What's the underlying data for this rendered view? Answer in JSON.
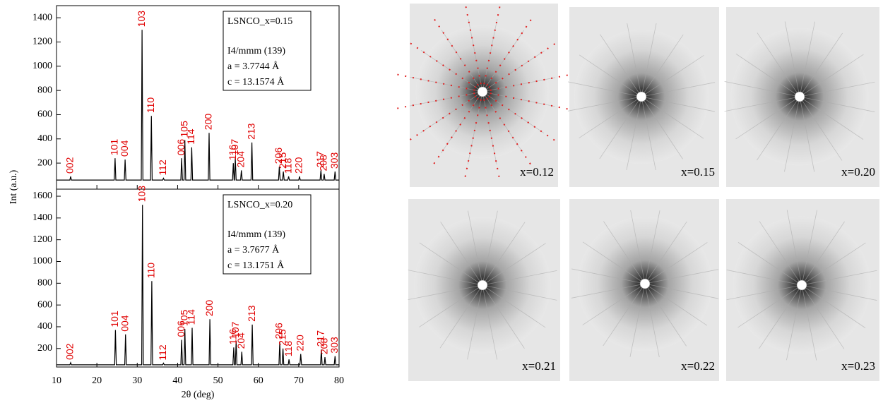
{
  "chart_data": [
    {
      "type": "line",
      "ylabel": "Int (a.u.)",
      "color": "#000000",
      "x": [
        10,
        13.3,
        13.5,
        13.7,
        24.3,
        24.5,
        24.7,
        26.8,
        27.0,
        27.2,
        31.0,
        31.2,
        31.4,
        33.3,
        33.5,
        33.7,
        36.3,
        36.5,
        36.7,
        40.8,
        41.0,
        41.2,
        41.6,
        41.8,
        42.0,
        43.3,
        43.5,
        43.7,
        47.6,
        47.8,
        48.0,
        53.6,
        53.8,
        54.0,
        54.1,
        54.3,
        54.5,
        55.6,
        55.8,
        56.0,
        58.2,
        58.4,
        58.6,
        65.0,
        65.2,
        65.4,
        66.0,
        66.2,
        66.4,
        67.3,
        67.5,
        67.7,
        70.0,
        70.2,
        70.4,
        75.3,
        75.5,
        75.7,
        76.1,
        76.3,
        76.5,
        78.8,
        79.0,
        79.2,
        80
      ],
      "values": [
        60,
        60,
        90,
        60,
        60,
        240,
        60,
        60,
        230,
        60,
        60,
        1300,
        60,
        60,
        590,
        60,
        60,
        75,
        60,
        60,
        240,
        60,
        60,
        390,
        60,
        60,
        330,
        60,
        60,
        450,
        60,
        60,
        200,
        60,
        60,
        240,
        60,
        60,
        140,
        60,
        60,
        370,
        60,
        60,
        170,
        60,
        60,
        130,
        60,
        60,
        90,
        60,
        60,
        90,
        60,
        60,
        140,
        60,
        60,
        110,
        60,
        60,
        130,
        60,
        60
      ],
      "xlim": [
        10,
        80
      ],
      "xticks": [
        10,
        20,
        30,
        40,
        50,
        60,
        70,
        80
      ],
      "ylim": [
        -15,
        1500
      ],
      "yticks": [
        200,
        400,
        600,
        800,
        1000,
        1200,
        1400
      ],
      "annotations": [
        {
          "text": "002",
          "x": 13.5,
          "y": 90
        },
        {
          "text": "101",
          "x": 24.5,
          "y": 240
        },
        {
          "text": "004",
          "x": 27.0,
          "y": 230
        },
        {
          "text": "103",
          "x": 31.2,
          "y": 1300
        },
        {
          "text": "110",
          "x": 33.5,
          "y": 590
        },
        {
          "text": "112",
          "x": 36.5,
          "y": 75
        },
        {
          "text": "006",
          "x": 41.0,
          "y": 240
        },
        {
          "text": "105",
          "x": 41.8,
          "y": 390
        },
        {
          "text": "114",
          "x": 43.5,
          "y": 330
        },
        {
          "text": "200",
          "x": 47.8,
          "y": 450
        },
        {
          "text": "116",
          "x": 53.8,
          "y": 200
        },
        {
          "text": "107",
          "x": 54.3,
          "y": 240
        },
        {
          "text": "204",
          "x": 55.8,
          "y": 140
        },
        {
          "text": "213",
          "x": 58.4,
          "y": 370
        },
        {
          "text": "206",
          "x": 65.2,
          "y": 170
        },
        {
          "text": "215",
          "x": 66.2,
          "y": 130
        },
        {
          "text": "118",
          "x": 67.5,
          "y": 90
        },
        {
          "text": "220",
          "x": 70.2,
          "y": 90
        },
        {
          "text": "217",
          "x": 75.5,
          "y": 140
        },
        {
          "text": "208",
          "x": 76.3,
          "y": 110
        },
        {
          "text": "303",
          "x": 79.0,
          "y": 130
        }
      ],
      "info_box": [
        "LSNCO_x=0.15",
        "I4/mmm (139)",
        "a = 3.7744 Å",
        "c = 13.1574 Å"
      ]
    },
    {
      "type": "line",
      "xlabel": "2θ (deg)",
      "color": "#000000",
      "x": [
        10,
        13.3,
        13.5,
        13.7,
        24.4,
        24.6,
        24.8,
        26.9,
        27.1,
        27.3,
        31.1,
        31.3,
        31.5,
        33.4,
        33.6,
        33.8,
        36.3,
        36.5,
        36.7,
        40.8,
        41.0,
        41.2,
        41.6,
        41.8,
        42.0,
        43.4,
        43.6,
        43.8,
        47.8,
        48.0,
        48.2,
        53.7,
        53.9,
        54.1,
        54.3,
        54.5,
        54.7,
        55.7,
        55.9,
        56.1,
        58.3,
        58.5,
        58.7,
        65.1,
        65.3,
        65.5,
        65.9,
        66.1,
        66.3,
        67.4,
        67.6,
        67.8,
        70.3,
        70.5,
        70.7,
        75.4,
        75.6,
        75.8,
        76.3,
        76.5,
        76.7,
        78.8,
        79.0,
        79.2,
        80
      ],
      "values": [
        50,
        50,
        70,
        50,
        50,
        370,
        50,
        50,
        330,
        50,
        50,
        1520,
        50,
        50,
        820,
        50,
        50,
        65,
        50,
        50,
        280,
        50,
        50,
        380,
        50,
        50,
        390,
        50,
        50,
        470,
        50,
        50,
        210,
        50,
        50,
        270,
        50,
        50,
        170,
        50,
        50,
        420,
        50,
        50,
        260,
        50,
        50,
        200,
        50,
        50,
        100,
        50,
        50,
        150,
        50,
        50,
        190,
        50,
        50,
        120,
        50,
        50,
        130,
        50,
        50
      ],
      "xlim": [
        10,
        80
      ],
      "xticks": [
        10,
        20,
        30,
        40,
        50,
        60,
        70,
        80
      ],
      "ylim": [
        30,
        1665
      ],
      "yticks": [
        200,
        400,
        600,
        800,
        1000,
        1200,
        1400,
        1600
      ],
      "annotations": [
        {
          "text": "002",
          "x": 13.5,
          "y": 70
        },
        {
          "text": "101",
          "x": 24.6,
          "y": 370
        },
        {
          "text": "004",
          "x": 27.1,
          "y": 330
        },
        {
          "text": "103",
          "x": 31.3,
          "y": 1520
        },
        {
          "text": "110",
          "x": 33.6,
          "y": 820
        },
        {
          "text": "112",
          "x": 36.5,
          "y": 65
        },
        {
          "text": "006",
          "x": 41.0,
          "y": 280
        },
        {
          "text": "105",
          "x": 41.8,
          "y": 380
        },
        {
          "text": "114",
          "x": 43.6,
          "y": 390
        },
        {
          "text": "200",
          "x": 48.0,
          "y": 470
        },
        {
          "text": "116",
          "x": 53.9,
          "y": 210
        },
        {
          "text": "107",
          "x": 54.5,
          "y": 270
        },
        {
          "text": "204",
          "x": 55.9,
          "y": 170
        },
        {
          "text": "213",
          "x": 58.5,
          "y": 420
        },
        {
          "text": "206",
          "x": 65.3,
          "y": 260
        },
        {
          "text": "215",
          "x": 66.1,
          "y": 200
        },
        {
          "text": "118",
          "x": 67.6,
          "y": 100
        },
        {
          "text": "220",
          "x": 70.5,
          "y": 150
        },
        {
          "text": "217",
          "x": 75.6,
          "y": 190
        },
        {
          "text": "208",
          "x": 76.5,
          "y": 120
        },
        {
          "text": "303",
          "x": 79.0,
          "y": 130
        }
      ],
      "info_box": [
        "LSNCO_x=0.20",
        "I4/mmm (139)",
        "a = 3.7677 Å",
        "c = 13.1751 Å"
      ]
    }
  ],
  "diffraction_panels": [
    {
      "label": "x=0.12"
    },
    {
      "label": "x=0.15"
    },
    {
      "label": "x=0.20"
    },
    {
      "label": "x=0.21"
    },
    {
      "label": "x=0.22"
    },
    {
      "label": "x=0.23"
    }
  ]
}
